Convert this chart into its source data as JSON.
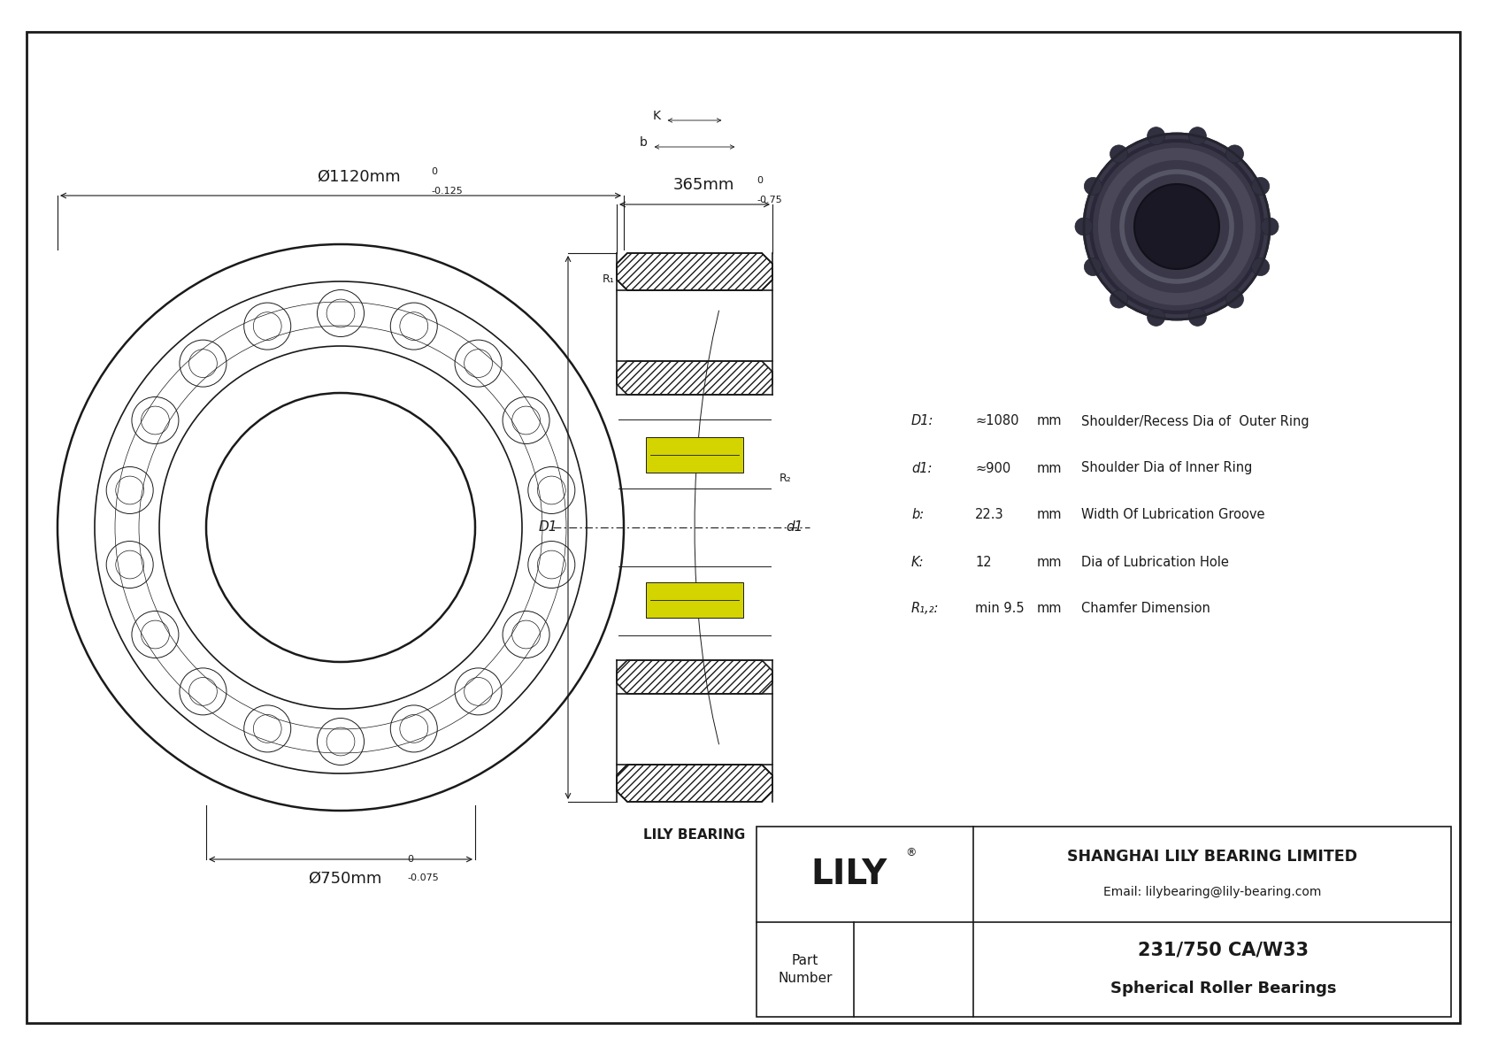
{
  "bg_color": "#ffffff",
  "line_color": "#1a1a1a",
  "outer_diameter_label": "Ø1120mm",
  "outer_tolerance_top": "0",
  "outer_tolerance_bot": "-0.125",
  "inner_diameter_label": "Ø750mm",
  "inner_tolerance_top": "0",
  "inner_tolerance_bot": "-0.075",
  "width_label": "365mm",
  "width_tolerance_top": "0",
  "width_tolerance_bot": "-0.75",
  "D1_label": "D1",
  "D1_value": "≈1080",
  "D1_unit": "mm",
  "D1_desc": "Shoulder/Recess Dia of  Outer Ring",
  "d1_label": "d1",
  "d1_value": "≈900",
  "d1_unit": "mm",
  "d1_desc": "Shoulder Dia of Inner Ring",
  "b_label": "b:",
  "b_value": "22.3",
  "b_unit": "mm",
  "b_desc": "Width Of Lubrication Groove",
  "K_label": "K:",
  "K_value": "12",
  "K_unit": "mm",
  "K_desc": "Dia of Lubrication Hole",
  "R12_label": "R₁,₂:",
  "R12_value": "min 9.5",
  "R12_unit": "mm",
  "R12_desc": "Chamfer Dimension",
  "company": "SHANGHAI LILY BEARING LIMITED",
  "email": "Email: lilybearing@lily-bearing.com",
  "part_number": "231/750 CA/W33",
  "part_type": "Spherical Roller Bearings",
  "lily_logo": "LILY",
  "brand_label": "LILY BEARING",
  "n_balls": 18,
  "roller_color": "#d4d400",
  "hatch_color": "#555555"
}
